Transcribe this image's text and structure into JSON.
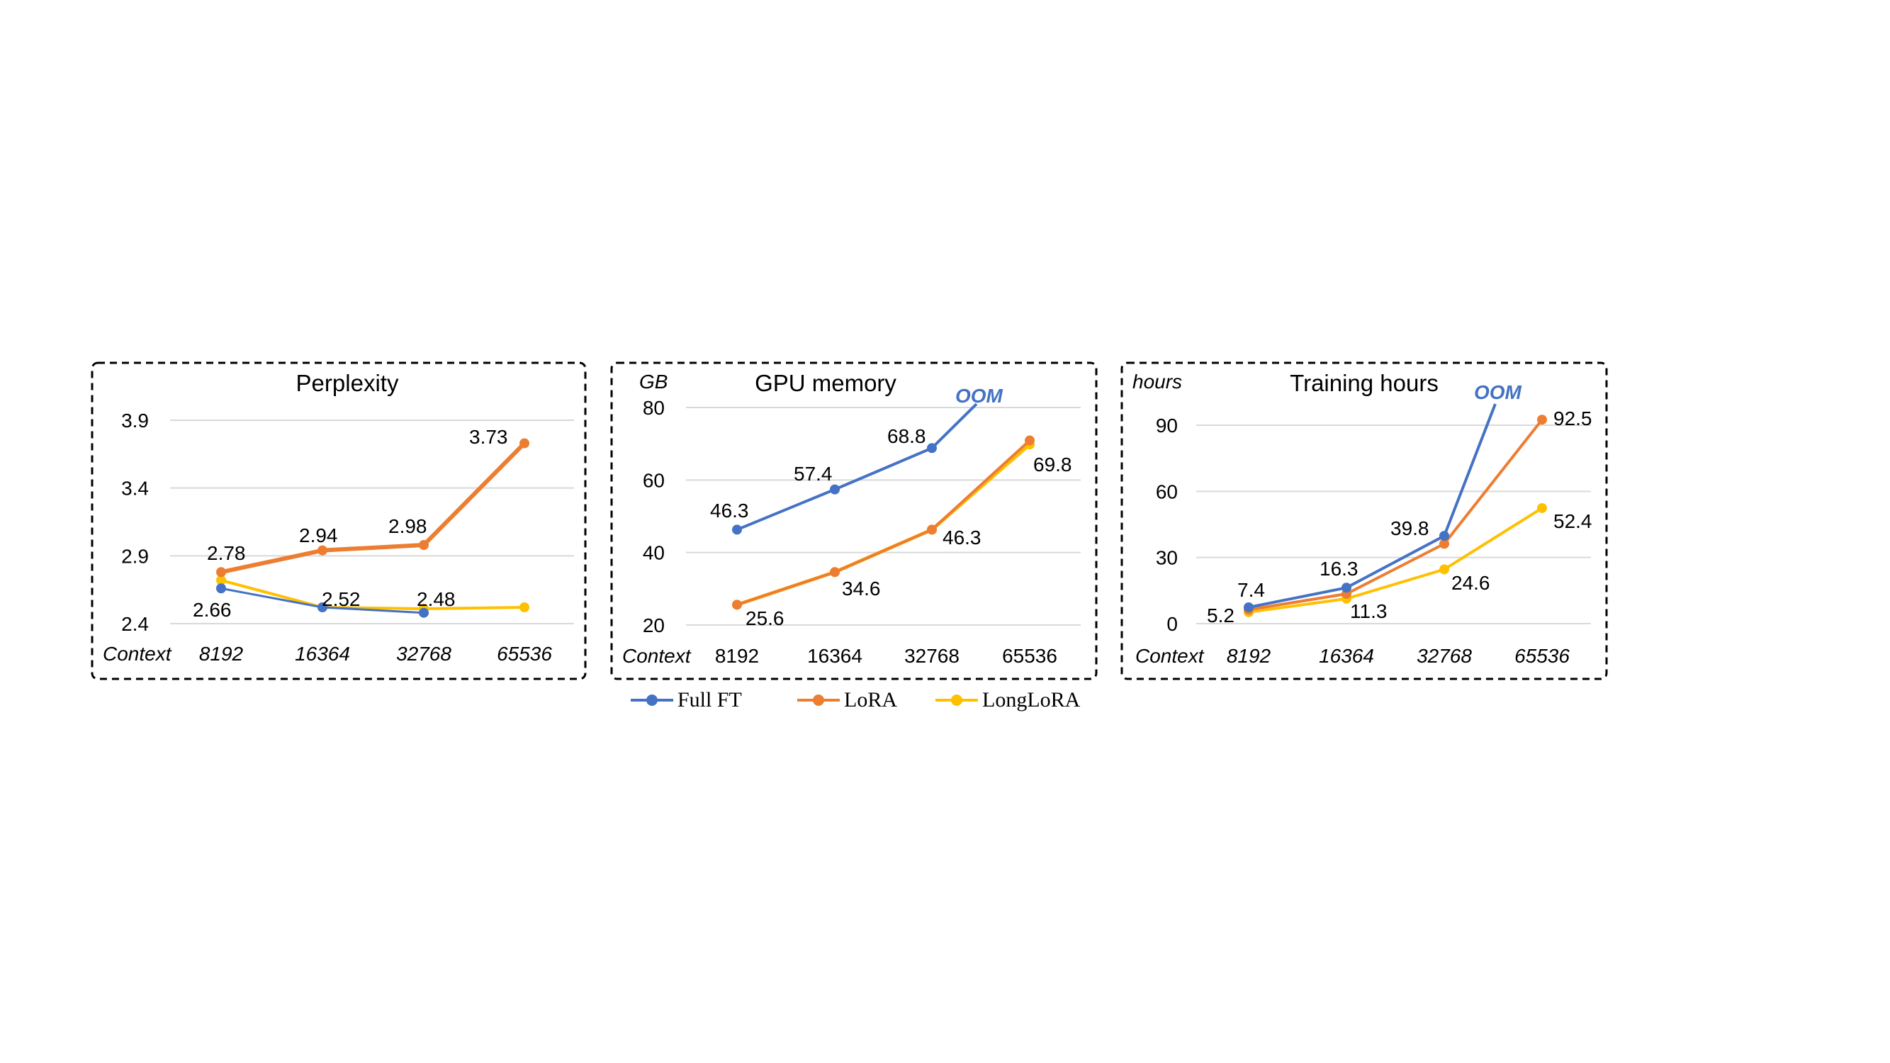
{
  "colors": {
    "Full FT": "#4472C4",
    "LoRA": "#ED7D31",
    "LongLoRA": "#FFC000",
    "grid": "#D9D9D9",
    "oom": "#4472C4"
  },
  "legend": {
    "items": [
      "Full FT",
      "LoRA",
      "LongLoRA"
    ]
  },
  "chart_data": [
    {
      "type": "line",
      "title": "Perplexity",
      "ylabel": "",
      "xlabel": "Context",
      "categories": [
        "8192",
        "16364",
        "32768",
        "65536"
      ],
      "ylim": [
        2.4,
        3.9
      ],
      "yticks": [
        "2.4",
        "2.9",
        "3.4",
        "3.9"
      ],
      "grid": true,
      "series": [
        {
          "name": "Full FT",
          "values": [
            2.66,
            2.52,
            2.48,
            null
          ]
        },
        {
          "name": "LoRA",
          "values": [
            2.78,
            2.94,
            2.98,
            3.73
          ]
        },
        {
          "name": "LongLoRA",
          "values": [
            2.72,
            2.52,
            2.51,
            2.52
          ]
        }
      ],
      "annotations": [
        "2.78",
        "2.94",
        "2.98",
        "3.73",
        "2.66",
        "2.52",
        "2.48"
      ]
    },
    {
      "type": "line",
      "title": "GPU memory",
      "ylabel": "GB",
      "xlabel": "Context",
      "categories": [
        "8192",
        "16364",
        "32768",
        "65536"
      ],
      "ylim": [
        20,
        80
      ],
      "yticks": [
        "20",
        "40",
        "60",
        "80"
      ],
      "grid": true,
      "series": [
        {
          "name": "Full FT",
          "values": [
            46.3,
            57.4,
            68.8,
            null
          ]
        },
        {
          "name": "LoRA",
          "values": [
            25.6,
            34.6,
            46.3,
            70.9
          ]
        },
        {
          "name": "LongLoRA",
          "values": [
            25.6,
            34.6,
            46.3,
            69.8
          ]
        }
      ],
      "annotations": [
        "46.3",
        "57.4",
        "68.8",
        "25.6",
        "34.6",
        "46.3",
        "69.8",
        "OOM"
      ]
    },
    {
      "type": "line",
      "title": "Training hours",
      "ylabel": "hours",
      "xlabel": "Context",
      "categories": [
        "8192",
        "16364",
        "32768",
        "65536"
      ],
      "ylim": [
        0,
        90
      ],
      "yticks": [
        "0",
        "30",
        "60",
        "90"
      ],
      "grid": true,
      "series": [
        {
          "name": "Full FT",
          "values": [
            7.4,
            16.3,
            39.8,
            null
          ]
        },
        {
          "name": "LoRA",
          "values": [
            6.3,
            13.5,
            36.2,
            92.5
          ]
        },
        {
          "name": "LongLoRA",
          "values": [
            5.2,
            11.3,
            24.6,
            52.4
          ]
        }
      ],
      "annotations": [
        "7.4",
        "16.3",
        "39.8",
        "92.5",
        "5.2",
        "11.3",
        "24.6",
        "52.4",
        "OOM"
      ]
    }
  ]
}
